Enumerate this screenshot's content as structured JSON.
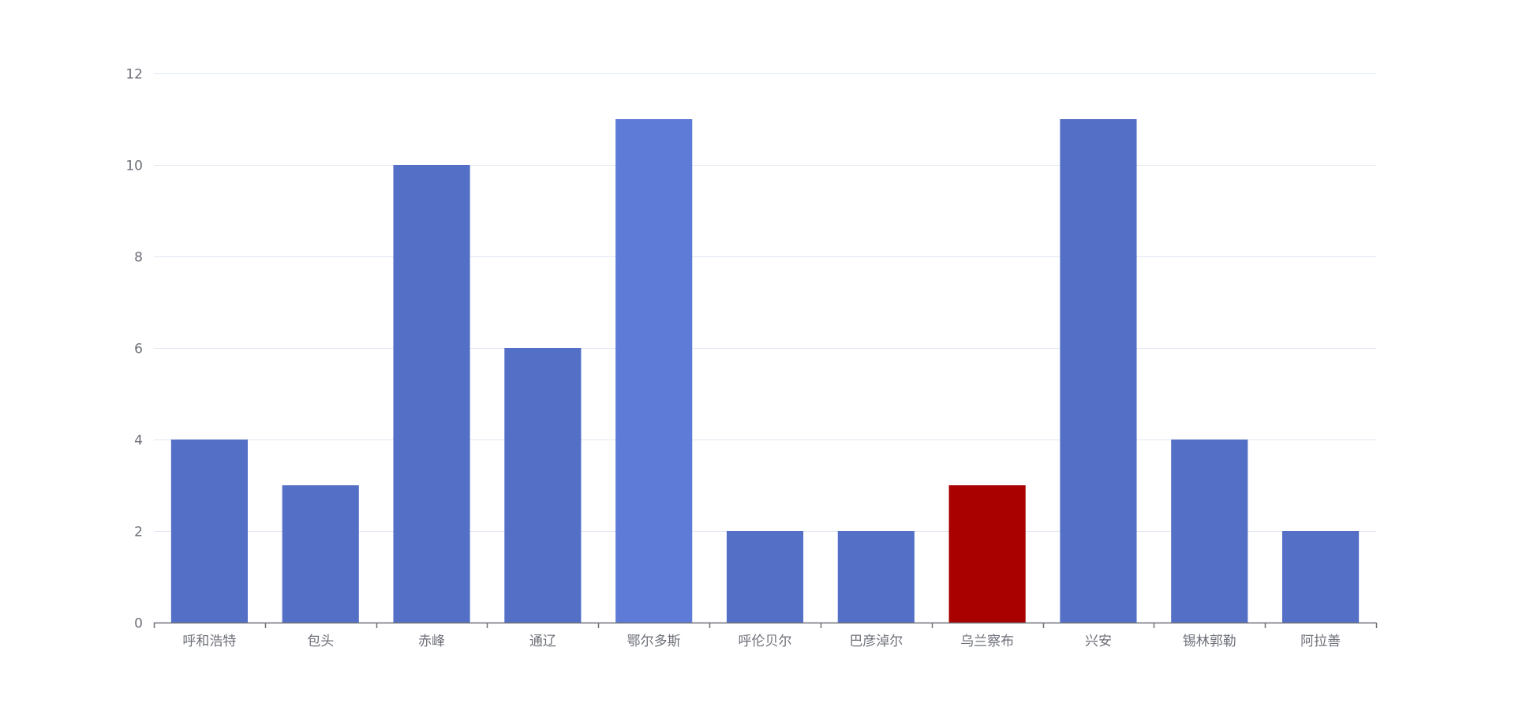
{
  "chart_data": {
    "type": "bar",
    "title": "",
    "xlabel": "",
    "ylabel": "",
    "categories": [
      "呼和浩特",
      "包头",
      "赤峰",
      "通辽",
      "鄂尔多斯",
      "呼伦贝尔",
      "巴彦淖尔",
      "乌兰察布",
      "兴安",
      "锡林郭勒",
      "阿拉善"
    ],
    "values": [
      4,
      3,
      10,
      6,
      11,
      2,
      2,
      3,
      11,
      4,
      2
    ],
    "ylim": [
      0,
      12
    ],
    "y_ticks": [
      0,
      2,
      4,
      6,
      8,
      10,
      12
    ],
    "grid": true,
    "legend": "none",
    "colors": {
      "default": "#5470c6",
      "emphasis": "#5f7bd8",
      "highlight": "#a90000",
      "grid": "#e0e6f1",
      "axis": "#6e7079",
      "label": "#6e7079"
    },
    "bar_colors": [
      "default",
      "default",
      "default",
      "default",
      "emphasis",
      "default",
      "default",
      "highlight",
      "default",
      "default",
      "default"
    ]
  }
}
